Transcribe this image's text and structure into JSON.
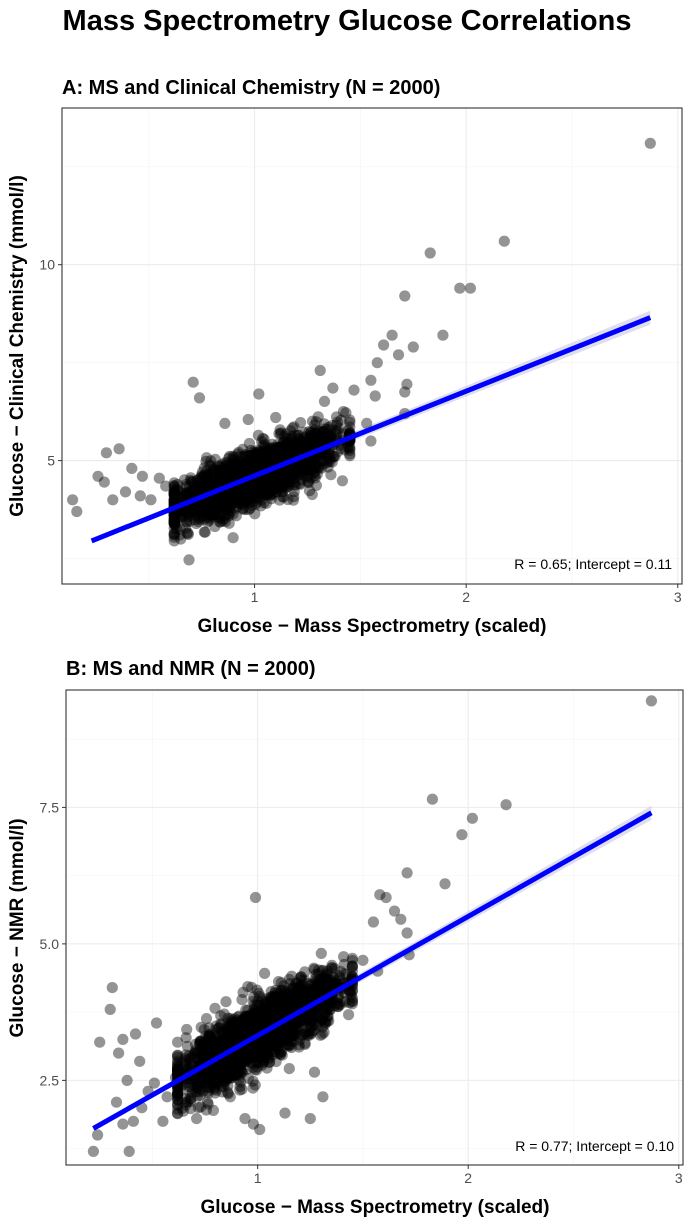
{
  "page": {
    "title": "Mass Spectrometry Glucose Correlations"
  },
  "chart_data": [
    {
      "type": "scatter",
      "title": "A: MS and Clinical Chemistry (N = 2000)",
      "xlabel": "Glucose − Mass Spectrometry (scaled)",
      "ylabel": "Glucose − Clinical Chemistry (mmol/l)",
      "xlim": [
        0.09,
        3.02
      ],
      "ylim": [
        1.85,
        14.0
      ],
      "xticks": [
        1,
        2,
        3
      ],
      "yticks": [
        5,
        10
      ],
      "xtick_labels": [
        "1",
        "2",
        "3"
      ],
      "ytick_labels": [
        "5",
        "10"
      ],
      "grid": true,
      "annotation": "R = 0.65; Intercept = 0.11",
      "annotation_position": "bottom-right",
      "fit_line": {
        "x": [
          0.23,
          2.87
        ],
        "y": [
          2.95,
          8.65
        ]
      },
      "n_points": 2000,
      "core_cluster": {
        "x_center": 1.0,
        "x_sd": 0.2,
        "intercept": 2.45,
        "slope": 2.15,
        "noise_sd": 0.35
      },
      "points": [
        [
          2.87,
          13.1
        ],
        [
          2.18,
          10.6
        ],
        [
          1.83,
          10.3
        ],
        [
          1.97,
          9.4
        ],
        [
          2.02,
          9.4
        ],
        [
          1.71,
          9.2
        ],
        [
          1.89,
          8.2
        ],
        [
          1.75,
          7.9
        ],
        [
          1.65,
          8.2
        ],
        [
          1.61,
          7.95
        ],
        [
          1.58,
          7.5
        ],
        [
          1.55,
          7.05
        ],
        [
          1.68,
          7.7
        ],
        [
          1.72,
          6.95
        ],
        [
          1.71,
          6.75
        ],
        [
          1.71,
          6.2
        ],
        [
          1.57,
          6.65
        ],
        [
          1.53,
          5.95
        ],
        [
          1.55,
          5.5
        ],
        [
          1.42,
          6.25
        ],
        [
          1.47,
          6.8
        ],
        [
          1.37,
          6.85
        ],
        [
          1.31,
          7.3
        ],
        [
          1.02,
          6.7
        ],
        [
          0.71,
          7.0
        ],
        [
          0.74,
          6.6
        ],
        [
          0.14,
          4.0
        ],
        [
          0.16,
          3.7
        ],
        [
          0.26,
          4.6
        ],
        [
          0.29,
          4.45
        ],
        [
          0.33,
          4.0
        ],
        [
          0.36,
          5.3
        ],
        [
          0.39,
          4.2
        ],
        [
          0.42,
          4.8
        ],
        [
          0.46,
          4.1
        ],
        [
          0.51,
          4.0
        ],
        [
          0.55,
          4.55
        ],
        [
          0.62,
          3.4
        ],
        [
          0.66,
          3.7
        ],
        [
          0.3,
          5.2
        ],
        [
          0.47,
          4.6
        ],
        [
          0.58,
          4.35
        ],
        [
          0.68,
          3.45
        ],
        [
          0.82,
          3.6
        ],
        [
          0.88,
          3.4
        ],
        [
          1.28,
          5.55
        ],
        [
          1.35,
          5.85
        ],
        [
          1.1,
          6.1
        ],
        [
          0.86,
          5.95
        ],
        [
          0.97,
          6.05
        ]
      ]
    },
    {
      "type": "scatter",
      "title": "B: MS and NMR (N = 2000)",
      "xlabel": "Glucose − Mass Spectrometry (scaled)",
      "ylabel": "Glucose − NMR (mmol/l)",
      "xlim": [
        0.09,
        3.02
      ],
      "ylim": [
        0.95,
        9.65
      ],
      "xticks": [
        1,
        2,
        3
      ],
      "yticks": [
        2.5,
        5.0,
        7.5
      ],
      "xtick_labels": [
        "1",
        "2",
        "3"
      ],
      "ytick_labels": [
        "2.5",
        "5.0",
        "7.5"
      ],
      "grid": true,
      "annotation": "R = 0.77; Intercept = 0.10",
      "annotation_position": "bottom-right",
      "fit_line": {
        "x": [
          0.22,
          2.87
        ],
        "y": [
          1.62,
          7.4
        ]
      },
      "n_points": 2000,
      "core_cluster": {
        "x_center": 1.0,
        "x_sd": 0.2,
        "intercept": 1.15,
        "slope": 2.18,
        "noise_sd": 0.3
      },
      "points": [
        [
          2.87,
          9.45
        ],
        [
          1.83,
          7.65
        ],
        [
          2.18,
          7.55
        ],
        [
          2.02,
          7.3
        ],
        [
          1.97,
          7.0
        ],
        [
          1.89,
          6.1
        ],
        [
          1.71,
          6.3
        ],
        [
          1.58,
          5.9
        ],
        [
          1.61,
          5.85
        ],
        [
          1.65,
          5.6
        ],
        [
          1.68,
          5.45
        ],
        [
          1.55,
          5.4
        ],
        [
          1.71,
          5.2
        ],
        [
          1.72,
          4.8
        ],
        [
          1.57,
          4.5
        ],
        [
          1.5,
          4.7
        ],
        [
          0.99,
          5.85
        ],
        [
          0.31,
          4.2
        ],
        [
          0.3,
          3.8
        ],
        [
          0.25,
          3.2
        ],
        [
          0.36,
          3.25
        ],
        [
          0.42,
          3.35
        ],
        [
          0.34,
          3.0
        ],
        [
          0.38,
          2.5
        ],
        [
          0.33,
          2.1
        ],
        [
          0.36,
          1.7
        ],
        [
          0.41,
          1.75
        ],
        [
          0.45,
          2.0
        ],
        [
          0.48,
          2.3
        ],
        [
          0.51,
          2.45
        ],
        [
          0.22,
          1.2
        ],
        [
          0.24,
          1.5
        ],
        [
          0.39,
          1.2
        ],
        [
          0.55,
          1.75
        ],
        [
          0.61,
          2.55
        ],
        [
          0.66,
          2.1
        ],
        [
          0.71,
          1.8
        ],
        [
          0.87,
          2.2
        ],
        [
          0.94,
          1.8
        ],
        [
          1.01,
          1.6
        ],
        [
          1.13,
          1.9
        ],
        [
          1.25,
          1.8
        ],
        [
          1.31,
          2.2
        ],
        [
          1.27,
          2.65
        ],
        [
          0.52,
          3.55
        ],
        [
          0.62,
          3.2
        ],
        [
          0.44,
          2.85
        ],
        [
          0.57,
          2.2
        ],
        [
          0.79,
          1.95
        ],
        [
          0.98,
          1.7
        ]
      ]
    }
  ]
}
